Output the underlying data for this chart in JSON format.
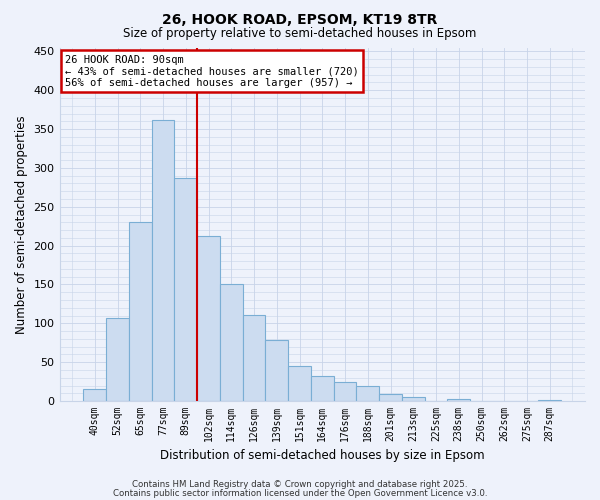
{
  "title": "26, HOOK ROAD, EPSOM, KT19 8TR",
  "subtitle": "Size of property relative to semi-detached houses in Epsom",
  "xlabel": "Distribution of semi-detached houses by size in Epsom",
  "ylabel": "Number of semi-detached properties",
  "bar_labels": [
    "40sqm",
    "52sqm",
    "65sqm",
    "77sqm",
    "89sqm",
    "102sqm",
    "114sqm",
    "126sqm",
    "139sqm",
    "151sqm",
    "164sqm",
    "176sqm",
    "188sqm",
    "201sqm",
    "213sqm",
    "225sqm",
    "238sqm",
    "250sqm",
    "262sqm",
    "275sqm",
    "287sqm"
  ],
  "bar_values": [
    15,
    107,
    230,
    362,
    287,
    212,
    150,
    111,
    78,
    45,
    32,
    25,
    20,
    9,
    5,
    0,
    3,
    0,
    0,
    0,
    2
  ],
  "bar_color": "#ccdcf0",
  "bar_edge_color": "#7aaed4",
  "background_color": "#eef2fb",
  "grid_color": "#c8d4e8",
  "vline_color": "#cc0000",
  "vline_x": 4.5,
  "annotation_text": "26 HOOK ROAD: 90sqm\n← 43% of semi-detached houses are smaller (720)\n56% of semi-detached houses are larger (957) →",
  "annotation_box_color": "#ffffff",
  "annotation_box_edge": "#cc0000",
  "ylim": [
    0,
    455
  ],
  "yticks": [
    0,
    50,
    100,
    150,
    200,
    250,
    300,
    350,
    400,
    450
  ],
  "footer1": "Contains HM Land Registry data © Crown copyright and database right 2025.",
  "footer2": "Contains public sector information licensed under the Open Government Licence v3.0."
}
